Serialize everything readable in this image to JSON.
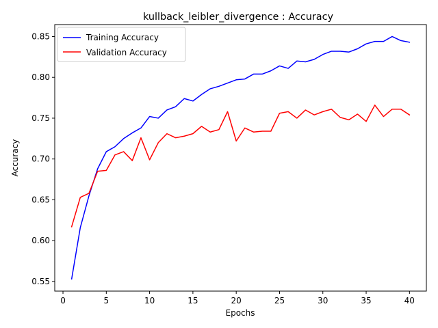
{
  "chart_data": {
    "type": "line",
    "title": "kullback_leibler_divergence : Accuracy",
    "xlabel": "Epochs",
    "ylabel": "Accuracy",
    "xlim": [
      -0.95,
      41.95
    ],
    "ylim": [
      0.5382,
      0.8646
    ],
    "xticks": [
      0,
      5,
      10,
      15,
      20,
      25,
      30,
      35,
      40
    ],
    "yticks": [
      0.55,
      0.6,
      0.65,
      0.7,
      0.75,
      0.8,
      0.85
    ],
    "grid": false,
    "legend_position": "top-left",
    "x": [
      1,
      2,
      3,
      4,
      5,
      6,
      7,
      8,
      9,
      10,
      11,
      12,
      13,
      14,
      15,
      16,
      17,
      18,
      19,
      20,
      21,
      22,
      23,
      24,
      25,
      26,
      27,
      28,
      29,
      30,
      31,
      32,
      33,
      34,
      35,
      36,
      37,
      38,
      39,
      40
    ],
    "series": [
      {
        "name": "Training Accuracy",
        "color": "#0000ff",
        "values": [
          0.553,
          0.616,
          0.655,
          0.688,
          0.709,
          0.715,
          0.725,
          0.732,
          0.738,
          0.752,
          0.75,
          0.76,
          0.764,
          0.774,
          0.771,
          0.779,
          0.786,
          0.789,
          0.793,
          0.797,
          0.798,
          0.804,
          0.804,
          0.808,
          0.814,
          0.811,
          0.82,
          0.819,
          0.822,
          0.828,
          0.832,
          0.832,
          0.831,
          0.835,
          0.841,
          0.844,
          0.844,
          0.85,
          0.845,
          0.843
        ]
      },
      {
        "name": "Validation Accuracy",
        "color": "#ff0000",
        "values": [
          0.617,
          0.653,
          0.658,
          0.685,
          0.686,
          0.705,
          0.709,
          0.698,
          0.726,
          0.699,
          0.72,
          0.731,
          0.726,
          0.728,
          0.731,
          0.74,
          0.733,
          0.736,
          0.758,
          0.722,
          0.738,
          0.733,
          0.734,
          0.734,
          0.756,
          0.758,
          0.75,
          0.76,
          0.754,
          0.758,
          0.761,
          0.751,
          0.748,
          0.755,
          0.746,
          0.766,
          0.752,
          0.761,
          0.761,
          0.754
        ]
      }
    ]
  }
}
